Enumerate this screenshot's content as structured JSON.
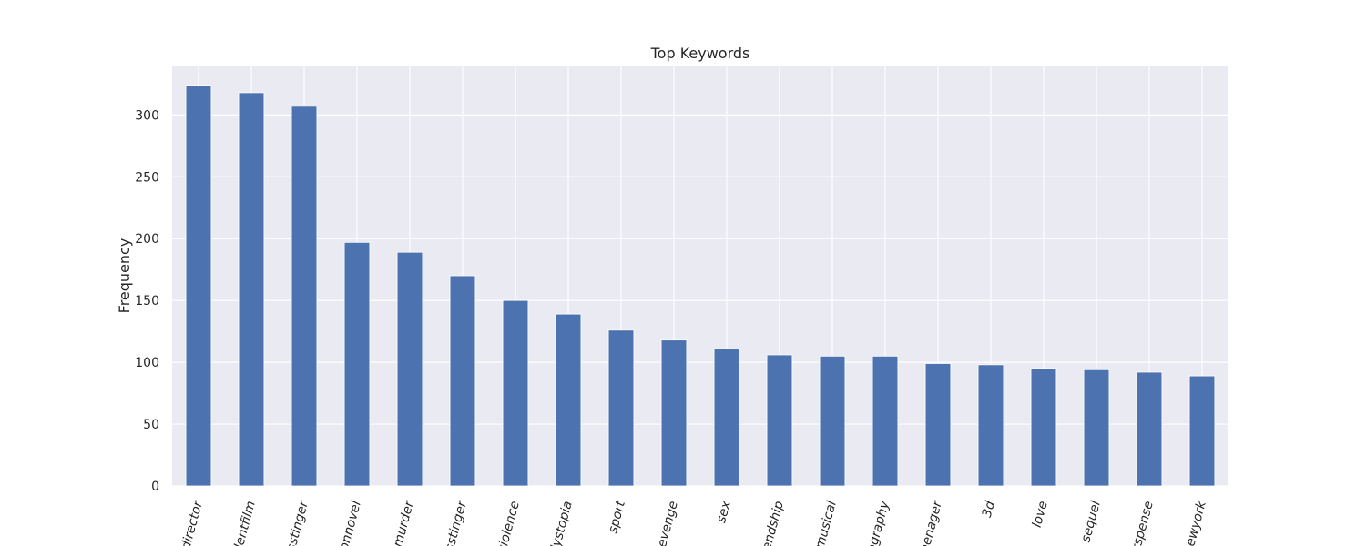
{
  "chart_data": {
    "type": "bar",
    "title": "Top Keywords",
    "xlabel": "",
    "ylabel": "Frequency",
    "categories": [
      "director",
      "dentfilm",
      "sstinger",
      "onnovel",
      "murder",
      "sstinger",
      "violence",
      "dystopia",
      "sport",
      "evenge",
      "sex",
      "endship",
      "musical",
      "ography",
      "eenager",
      "3d",
      "love",
      "sequel",
      "rspense",
      "newyork"
    ],
    "values": [
      324,
      318,
      307,
      197,
      189,
      170,
      150,
      139,
      126,
      118,
      111,
      106,
      105,
      105,
      99,
      98,
      95,
      94,
      92,
      89
    ],
    "yticks": [
      0,
      50,
      100,
      150,
      200,
      250,
      300
    ],
    "ylim": [
      0,
      340
    ],
    "grid": true,
    "colors": {
      "bar": "#4C72B0",
      "background": "#EAEAF2",
      "grid": "#FFFFFF",
      "text": "#262626"
    }
  }
}
